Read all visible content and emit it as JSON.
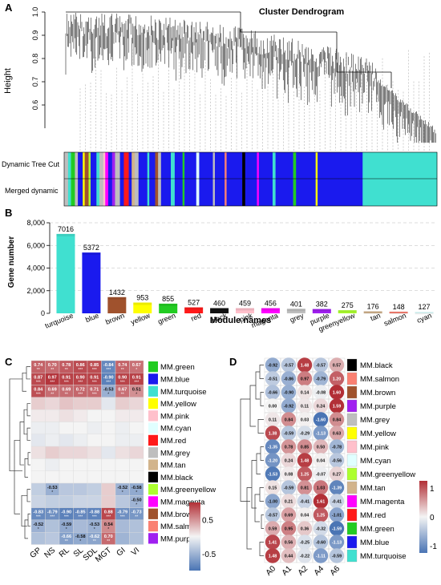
{
  "panel_labels": {
    "a": "A",
    "b": "B",
    "c": "C",
    "d": "D"
  },
  "chart_data": [
    {
      "panel": "A",
      "type": "dendrogram",
      "title": "Cluster Dendrogram",
      "ylabel": "Height",
      "ylim": [
        0.5,
        1.0
      ],
      "yticks": [
        "0.6",
        "0.7",
        "0.8",
        "0.9",
        "1.0"
      ],
      "yticks_values": [
        0.6,
        0.7,
        0.8,
        0.9,
        1.0
      ],
      "track_labels": [
        "Dynamic Tree Cut",
        "Merged dynamic"
      ],
      "colors": {
        "turquoise": "#40e0d0",
        "blue": "#1a1aee",
        "brown": "#a0522d",
        "yellow": "#ffff00",
        "green": "#22cc22",
        "red": "#ff1a1a",
        "black": "#000000",
        "pink": "#ffc0cb",
        "magenta": "#ff00ff",
        "grey": "#bebebe",
        "purple": "#a020f0",
        "greenyellow": "#adff2f",
        "tan": "#d2b48c",
        "salmon": "#fa8072",
        "cyan": "#e0ffff"
      }
    },
    {
      "panel": "B",
      "type": "bar",
      "xlabel": "Module names",
      "ylabel": "Gene number",
      "ylim": [
        0,
        8000
      ],
      "yticks": [
        "0",
        "2,000",
        "4,000",
        "6,000",
        "8,000"
      ],
      "yticks_values": [
        0,
        2000,
        4000,
        6000,
        8000
      ],
      "categories": [
        "turquoise",
        "blue",
        "brown",
        "yellow",
        "green",
        "red",
        "black",
        "pink",
        "magenta",
        "grey",
        "purple",
        "greenyellow",
        "tan",
        "salmon",
        "cyan"
      ],
      "values": [
        7016,
        5372,
        1432,
        953,
        855,
        527,
        460,
        459,
        456,
        401,
        382,
        275,
        176,
        148,
        127
      ],
      "bar_colors": [
        "#40e0d0",
        "#1a1aee",
        "#a0522d",
        "#ffff00",
        "#22cc22",
        "#ff1a1a",
        "#111111",
        "#ffc0cb",
        "#ff00ff",
        "#bebebe",
        "#a020f0",
        "#adff2f",
        "#d2b48c",
        "#fa8072",
        "#e0ffff"
      ],
      "grid": true
    },
    {
      "panel": "C",
      "type": "heatmap",
      "columns": [
        "GP",
        "NS",
        "RL",
        "SL",
        "SDL",
        "MGT",
        "GI",
        "VI"
      ],
      "rows": [
        "MM.green",
        "MM.blue",
        "MM.turquoise",
        "MM.yellow",
        "MM.pink",
        "MM.cyan",
        "MM.red",
        "MM.grey",
        "MM.tan",
        "MM.black",
        "MM.greenyellow",
        "MM.magenta",
        "MM.brown",
        "MM.salmon",
        "MM.purple"
      ],
      "row_colors": [
        "#22cc22",
        "#1a1aee",
        "#40e0d0",
        "#ffff00",
        "#ffc0cb",
        "#e0ffff",
        "#ff1a1a",
        "#bebebe",
        "#d2b48c",
        "#000000",
        "#adff2f",
        "#ff00ff",
        "#a0522d",
        "#fa8072",
        "#a020f0"
      ],
      "values": [
        [
          0.74,
          0.7,
          0.78,
          0.86,
          0.85,
          -0.84,
          0.74,
          0.67
        ],
        [
          0.87,
          0.97,
          0.91,
          0.9,
          0.91,
          -0.9,
          0.9,
          0.91
        ],
        [
          0.84,
          0.69,
          0.69,
          0.72,
          0.71,
          -0.53,
          0.67,
          0.51
        ],
        [
          0.2,
          0.15,
          0.25,
          0.2,
          0.2,
          -0.1,
          0.2,
          0.15
        ],
        [
          0.05,
          0.05,
          0.1,
          0.05,
          0.0,
          0.0,
          0.05,
          0.05
        ],
        [
          -0.05,
          -0.05,
          0.0,
          0.0,
          -0.05,
          0.0,
          -0.05,
          0.0
        ],
        [
          -0.1,
          -0.05,
          -0.1,
          -0.05,
          0.0,
          0.0,
          -0.05,
          -0.05
        ],
        [
          0.1,
          0.2,
          0.15,
          0.15,
          0.1,
          -0.1,
          0.1,
          0.15
        ],
        [
          0.0,
          -0.05,
          0.0,
          0.0,
          0.0,
          0.0,
          0.0,
          0.0
        ],
        [
          0.0,
          0.0,
          0.0,
          0.0,
          0.0,
          0.0,
          0.0,
          0.0
        ],
        [
          -0.3,
          -0.53,
          -0.35,
          -0.35,
          -0.3,
          0.2,
          -0.52,
          -0.58
        ],
        [
          -0.25,
          -0.3,
          -0.3,
          -0.25,
          -0.25,
          0.2,
          -0.35,
          -0.5
        ],
        [
          -0.83,
          -0.79,
          -0.9,
          -0.85,
          -0.88,
          0.88,
          -0.79,
          -0.73
        ],
        [
          -0.52,
          -0.4,
          -0.59,
          -0.45,
          -0.53,
          0.54,
          -0.45,
          -0.4
        ],
        [
          -0.4,
          -0.35,
          -0.66,
          -0.58,
          -0.62,
          0.7,
          -0.5,
          -0.4
        ]
      ],
      "labels": [
        [
          "0.74",
          "0.70",
          "0.78",
          "0.86",
          "0.85",
          "-0.84",
          "0.74",
          "0.67"
        ],
        [
          "0.87",
          "0.97",
          "0.91",
          "0.90",
          "0.91",
          "-0.90",
          "0.90",
          "0.91"
        ],
        [
          "0.84",
          "0.69",
          "0.69",
          "0.72",
          "0.71",
          "-0.53",
          "0.67",
          "0.51"
        ],
        [
          "",
          "",
          "",
          "",
          "",
          "",
          "",
          ""
        ],
        [
          "",
          "",
          "",
          "",
          "",
          "",
          "",
          ""
        ],
        [
          "",
          "",
          "",
          "",
          "",
          "",
          "",
          ""
        ],
        [
          "",
          "",
          "",
          "",
          "",
          "",
          "",
          ""
        ],
        [
          "",
          "",
          "",
          "",
          "",
          "",
          "",
          ""
        ],
        [
          "",
          "",
          "",
          "",
          "",
          "",
          "",
          ""
        ],
        [
          "",
          "",
          "",
          "",
          "",
          "",
          "",
          ""
        ],
        [
          "",
          "-0.53",
          "",
          "",
          "",
          "",
          "-0.52",
          "-0.58"
        ],
        [
          "",
          "",
          "",
          "",
          "",
          "",
          "",
          "-0.50"
        ],
        [
          "-0.83",
          "-0.79",
          "-0.90",
          "-0.85",
          "-0.88",
          "0.88",
          "-0.79",
          "-0.73"
        ],
        [
          "-0.52",
          "",
          "-0.59",
          "",
          "-0.53",
          "0.54",
          "",
          ""
        ],
        [
          "",
          "",
          "-0.66",
          "-0.58",
          "-0.62",
          "0.70",
          "",
          ""
        ]
      ],
      "stars": [
        [
          "**",
          "**",
          "**",
          "***",
          "***",
          "***",
          "**",
          "*"
        ],
        [
          "***",
          "***",
          "***",
          "***",
          "***",
          "***",
          "***",
          "***"
        ],
        [
          "***",
          "**",
          "**",
          "***",
          "***",
          "*",
          "**",
          "*"
        ],
        [
          "",
          "",
          "",
          "",
          "",
          "",
          "",
          ""
        ],
        [
          "",
          "",
          "",
          "",
          "",
          "",
          "",
          ""
        ],
        [
          "",
          "",
          "",
          "",
          "",
          "",
          "",
          ""
        ],
        [
          "",
          "",
          "",
          "",
          "",
          "",
          "",
          ""
        ],
        [
          "",
          "",
          "",
          "",
          "",
          "",
          "",
          ""
        ],
        [
          "",
          "",
          "",
          "",
          "",
          "",
          "",
          ""
        ],
        [
          "",
          "",
          "",
          "",
          "",
          "",
          "",
          ""
        ],
        [
          "",
          "*",
          "",
          "",
          "",
          "",
          "*",
          "*"
        ],
        [
          "",
          "",
          "",
          "",
          "",
          "",
          "",
          "*"
        ],
        [
          "***",
          "***",
          "***",
          "***",
          "***",
          "***",
          "***",
          "**"
        ],
        [
          "*",
          "",
          "*",
          "",
          "*",
          "*",
          "",
          ""
        ],
        [
          "",
          "",
          "**",
          "*",
          "**",
          "**",
          "",
          ""
        ]
      ],
      "legend_ticks": [
        "0.5",
        "-0.5"
      ],
      "legend_values": [
        0.5,
        -0.5
      ],
      "scale_range": [
        -1,
        1
      ]
    },
    {
      "panel": "D",
      "type": "heatmap",
      "columns": [
        "A0",
        "A1",
        "A2",
        "A4",
        "A6"
      ],
      "rows": [
        "MM.black",
        "MM.salmon",
        "MM.brown",
        "MM.purple",
        "MM.grey",
        "MM.yellow",
        "MM.pink",
        "MM.cyan",
        "MM.greenyellow",
        "MM.tan",
        "MM.magenta",
        "MM.red",
        "MM.green",
        "MM.blue",
        "MM.turquoise"
      ],
      "row_colors": [
        "#000000",
        "#fa8072",
        "#a0522d",
        "#a020f0",
        "#bebebe",
        "#ffff00",
        "#ffc0cb",
        "#e0ffff",
        "#adff2f",
        "#d2b48c",
        "#ff00ff",
        "#ff1a1a",
        "#22cc22",
        "#1a1aee",
        "#40e0d0"
      ],
      "values": [
        [
          -0.92,
          -0.57,
          1.48,
          -0.57,
          0.57
        ],
        [
          -0.51,
          -0.86,
          0.97,
          -0.79,
          1.2
        ],
        [
          -0.66,
          -0.9,
          0.14,
          -0.08,
          1.6
        ],
        [
          0.0,
          -0.92,
          0.11,
          0.24,
          1.59
        ],
        [
          0.11,
          0.84,
          0.03,
          -1.6,
          0.84
        ],
        [
          1.38,
          -0.59,
          -0.29,
          -1.13,
          0.63
        ],
        [
          -1.35,
          0.78,
          0.85,
          0.5,
          -0.78
        ],
        [
          -1.2,
          0.24,
          1.48,
          0.04,
          -0.56
        ],
        [
          -1.53,
          0.08,
          1.25,
          -0.07,
          0.27
        ],
        [
          0.15,
          -0.59,
          0.81,
          1.03,
          -1.39
        ],
        [
          -1.0,
          0.21,
          -0.41,
          1.61,
          -0.41
        ],
        [
          -0.57,
          0.69,
          0.04,
          1.25,
          -1.01
        ],
        [
          0.59,
          0.95,
          0.36,
          -0.32,
          -1.59
        ],
        [
          1.41,
          0.56,
          -0.25,
          -0.6,
          -1.13
        ],
        [
          1.48,
          0.44,
          -0.22,
          -1.11,
          -0.59
        ]
      ],
      "labels": [
        [
          "-0.92",
          "-0.57",
          "1.48",
          "-0.57",
          "0.57"
        ],
        [
          "-0.51",
          "-0.86",
          "0.97",
          "-0.79",
          "1.20"
        ],
        [
          "-0.66",
          "-0.90",
          "0.14",
          "-0.08",
          "1.60"
        ],
        [
          "0.00",
          "-0.92",
          "0.11",
          "0.24",
          "1.59"
        ],
        [
          "0.11",
          "0.84",
          "0.03",
          "-1.60",
          "0.84"
        ],
        [
          "1.38",
          "-0.59",
          "-0.29",
          "-1.13",
          "0.63"
        ],
        [
          "-1.35",
          "0.78",
          "0.85",
          "0.50",
          "-0.78"
        ],
        [
          "-1.20",
          "0.24",
          "1.48",
          "0.04",
          "-0.56"
        ],
        [
          "-1.53",
          "0.08",
          "1.25",
          "-0.07",
          "0.27"
        ],
        [
          "0.15",
          "-0.59",
          "0.81",
          "1.03",
          "-1.39"
        ],
        [
          "-1.00",
          "0.21",
          "-0.41",
          "1.61",
          "-0.41"
        ],
        [
          "-0.57",
          "0.69",
          "0.04",
          "1.25",
          "-1.01"
        ],
        [
          "0.59",
          "0.95",
          "0.36",
          "-0.32",
          "-1.59"
        ],
        [
          "1.41",
          "0.56",
          "-0.25",
          "-0.60",
          "-1.13"
        ],
        [
          "1.48",
          "0.44",
          "-0.22",
          "-1.11",
          "-0.59"
        ]
      ],
      "legend_ticks": [
        "1",
        "0",
        "-1"
      ],
      "legend_values": [
        1,
        0,
        -1
      ],
      "scale_range": [
        -1.6,
        1.6
      ]
    }
  ]
}
